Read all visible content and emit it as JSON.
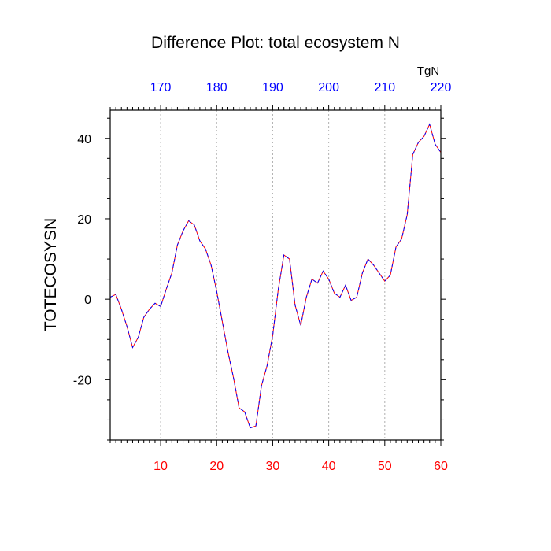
{
  "chart_data": {
    "type": "line",
    "title": "Difference Plot: total ecosystem N",
    "ylabel": "TOTECOSYSN",
    "top_axis_units": "TgN",
    "xlim": [
      1,
      60
    ],
    "ylim": [
      -35,
      47
    ],
    "x_ticks": [
      10,
      20,
      30,
      40,
      50,
      60
    ],
    "y_ticks": [
      -20,
      0,
      20,
      40
    ],
    "y_tick_labels": [
      "-20",
      "0",
      "20",
      "40"
    ],
    "top_ticks": [
      10,
      20,
      30,
      40,
      50,
      60
    ],
    "top_tick_labels": [
      "170",
      "180",
      "190",
      "200",
      "210",
      "220"
    ],
    "bottom_tick_color": "#ff0000",
    "top_tick_color": "#0000ff",
    "line_colors": [
      "#ff0000",
      "#0000ff"
    ],
    "line_style": "dashed",
    "grid": "vertical-dotted",
    "series": [
      {
        "x": [
          1,
          2,
          3,
          4,
          5,
          6,
          7,
          8,
          9,
          10,
          11,
          12,
          13,
          14,
          15,
          16,
          17,
          18,
          19,
          20,
          21,
          22,
          23,
          24,
          25,
          26,
          27,
          28,
          29,
          30,
          31,
          32,
          33,
          34,
          35,
          36,
          37,
          38,
          39,
          40,
          41,
          42,
          43,
          44,
          45,
          46,
          47,
          48,
          49,
          50,
          51,
          52,
          53,
          54,
          55,
          56,
          57,
          58,
          59,
          60
        ],
        "y": [
          0.5,
          1.2,
          -2.5,
          -6.8,
          -12,
          -9.5,
          -4.5,
          -2.5,
          -1,
          -1.8,
          2.5,
          6.5,
          13.5,
          17,
          19.5,
          18.5,
          14.5,
          12.5,
          8.5,
          2,
          -5.5,
          -13,
          -19.5,
          -27,
          -28,
          -32,
          -31.5,
          -21.5,
          -16.5,
          -9,
          2.5,
          11,
          10,
          -1.5,
          -6.5,
          0.5,
          5,
          4,
          7,
          5,
          1.5,
          0.5,
          3.5,
          -0.3,
          0.5,
          6.5,
          10,
          8.5,
          6.5,
          4.5,
          6,
          13,
          15,
          21,
          36,
          39,
          40.5,
          43.5,
          38.5,
          36.5
        ]
      }
    ]
  }
}
